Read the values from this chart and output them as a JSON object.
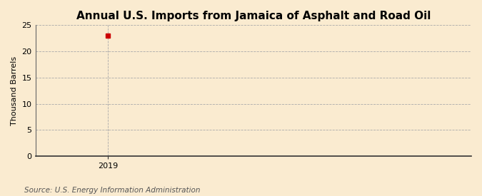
{
  "title": "Annual U.S. Imports from Jamaica of Asphalt and Road Oil",
  "ylabel": "Thousand Barrels",
  "source_text": "Source: U.S. Energy Information Administration",
  "x_data": [
    2019
  ],
  "y_data": [
    23
  ],
  "marker_color": "#cc0000",
  "marker_shape": "s",
  "marker_size": 4,
  "ylim": [
    0,
    25
  ],
  "yticks": [
    0,
    5,
    10,
    15,
    20,
    25
  ],
  "xlim": [
    2018.5,
    2021.5
  ],
  "xticks": [
    2019
  ],
  "xticklabels": [
    "2019"
  ],
  "grid_color": "#aaaaaa",
  "grid_linestyle": "--",
  "grid_linewidth": 0.6,
  "bg_color": "#faebd0",
  "title_fontsize": 11,
  "title_fontweight": "bold",
  "axis_label_fontsize": 8,
  "tick_fontsize": 8,
  "source_fontsize": 7.5
}
